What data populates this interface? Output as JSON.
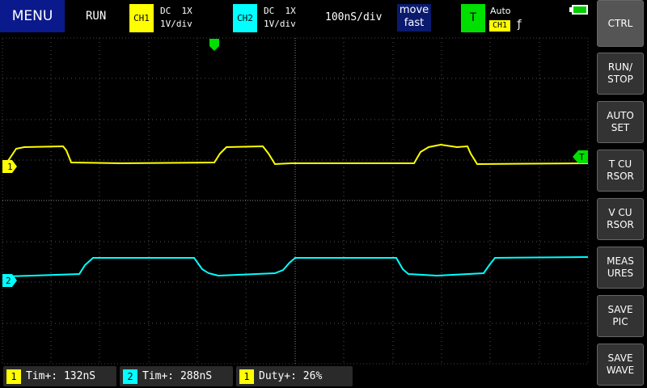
{
  "toolbar": {
    "menu": "MENU",
    "run_state": "RUN",
    "ch1": {
      "label": "CH1",
      "coupling": "DC  1X",
      "scale": "1V/div"
    },
    "ch2": {
      "label": "CH2",
      "coupling": "DC  1X",
      "scale": "1V/div"
    },
    "timebase": "100nS/div",
    "move_mode": [
      "move",
      "fast"
    ],
    "trigger": {
      "label": "T",
      "mode": "Auto",
      "source": "CH1",
      "edge": "ƒ"
    }
  },
  "markers": {
    "ch1": "1",
    "ch2": "2",
    "trigger_level": "T"
  },
  "side_buttons": [
    [
      "CTRL"
    ],
    [
      "RUN/",
      "STOP"
    ],
    [
      "AUTO",
      "SET"
    ],
    [
      "T CU",
      "RSOR"
    ],
    [
      "V CU",
      "RSOR"
    ],
    [
      "MEAS",
      "URES"
    ],
    [
      "SAVE",
      "PIC"
    ],
    [
      "SAVE",
      "WAVE"
    ]
  ],
  "measurements": [
    {
      "channel": "1",
      "text": "Tim+: 132nS"
    },
    {
      "channel": "2",
      "text": "Tim+: 288nS"
    },
    {
      "channel": "1",
      "text": "Duty+: 26%"
    }
  ]
}
